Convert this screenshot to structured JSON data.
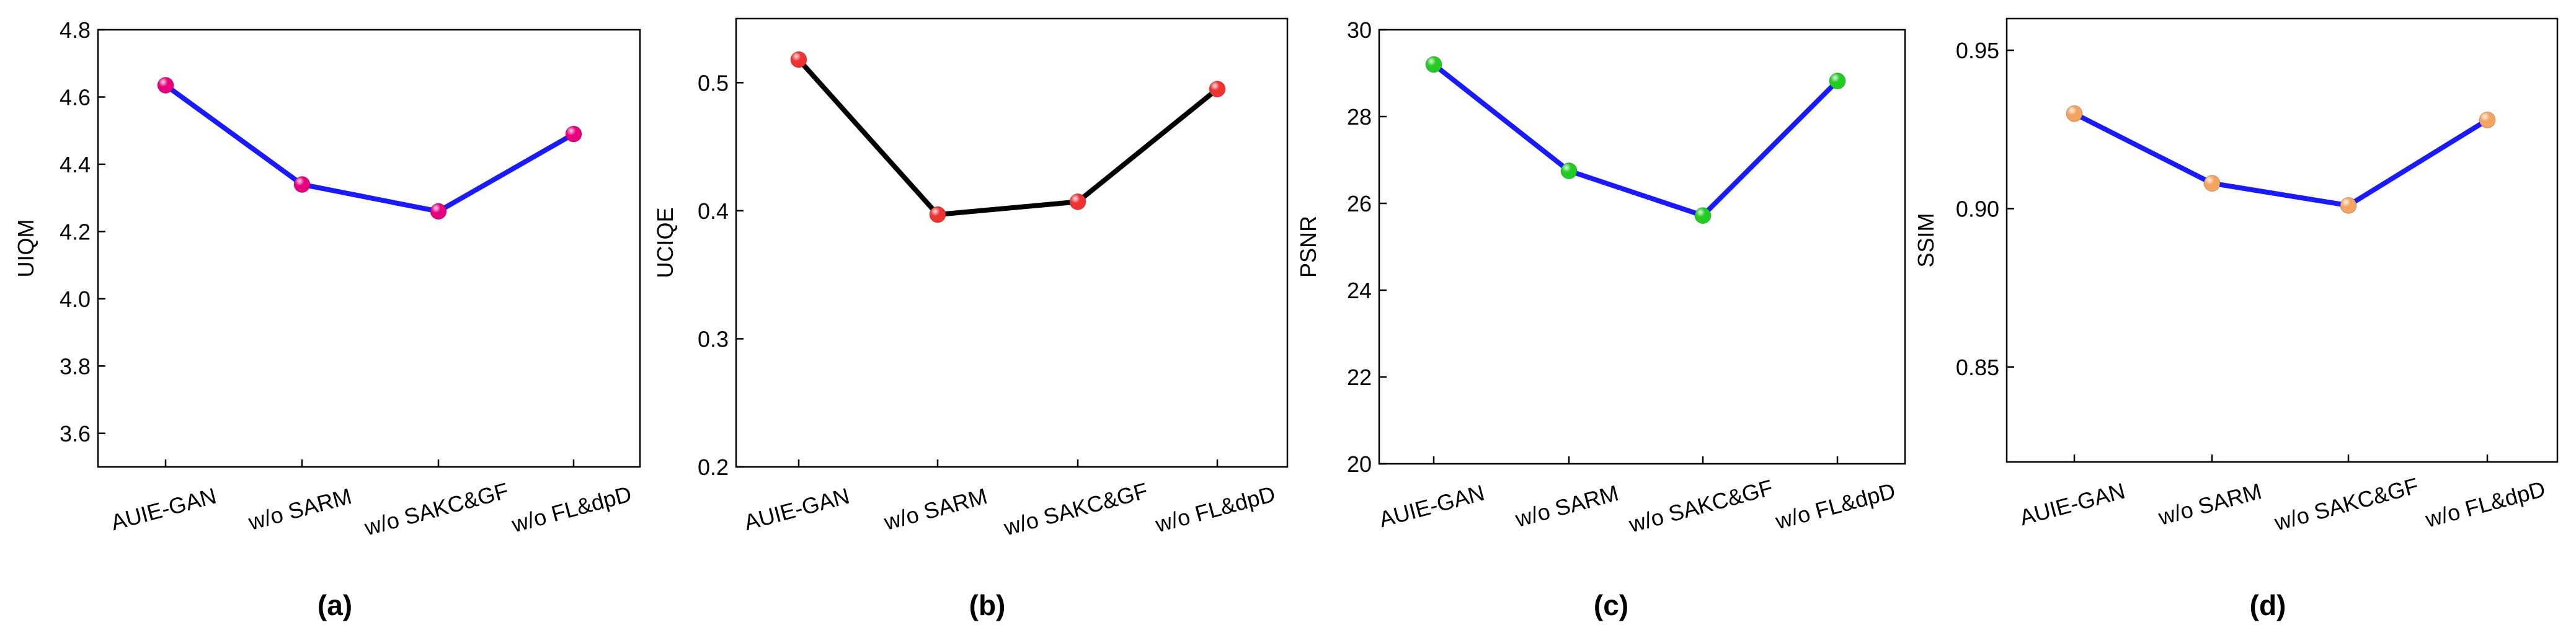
{
  "chart_data": [
    {
      "type": "line",
      "panel_label": "(a)",
      "ylabel": "UIQM",
      "categories": [
        "AUIE-GAN",
        "w/o SARM",
        "w/o SAKC&GF",
        "w/o FL&dpD"
      ],
      "values": [
        4.635,
        4.34,
        4.26,
        4.49
      ],
      "ylim": [
        3.5,
        4.8
      ],
      "yticks": [
        3.6,
        3.8,
        4.0,
        4.2,
        4.4,
        4.6,
        4.8
      ],
      "ytick_labels": [
        "3.6",
        "3.8",
        "4.0",
        "4.2",
        "4.4",
        "4.6",
        "4.8"
      ],
      "line_color": "#1a1aff",
      "marker_color": "#e6007e"
    },
    {
      "type": "line",
      "panel_label": "(b)",
      "ylabel": "UCIQE",
      "categories": [
        "AUIE-GAN",
        "w/o SARM",
        "w/o SAKC&GF",
        "w/o FL&dpD"
      ],
      "values": [
        0.518,
        0.397,
        0.407,
        0.495
      ],
      "ylim": [
        0.2,
        0.55
      ],
      "yticks": [
        0.2,
        0.3,
        0.4,
        0.5
      ],
      "ytick_labels": [
        "0.2",
        "0.3",
        "0.4",
        "0.5"
      ],
      "line_color": "#000000",
      "marker_color": "#ee3333"
    },
    {
      "type": "line",
      "panel_label": "(c)",
      "ylabel": "PSNR",
      "categories": [
        "AUIE-GAN",
        "w/o SARM",
        "w/o SAKC&GF",
        "w/o FL&dpD"
      ],
      "values": [
        29.2,
        26.75,
        25.72,
        28.82
      ],
      "ylim": [
        20,
        30
      ],
      "yticks": [
        20,
        22,
        24,
        26,
        28,
        30
      ],
      "ytick_labels": [
        "20",
        "22",
        "24",
        "26",
        "28",
        "30"
      ],
      "line_color": "#1a1aff",
      "marker_color": "#22cc22"
    },
    {
      "type": "line",
      "panel_label": "(d)",
      "ylabel": "SSIM",
      "categories": [
        "AUIE-GAN",
        "w/o SARM",
        "w/o SAKC&GF",
        "w/o FL&dpD"
      ],
      "values": [
        0.93,
        0.908,
        0.901,
        0.928
      ],
      "ylim": [
        0.82,
        0.96
      ],
      "yticks": [
        0.85,
        0.9,
        0.95
      ],
      "ytick_labels": [
        "0.85",
        "0.90",
        "0.95"
      ],
      "line_color": "#1a1aff",
      "marker_color": "#f4a460"
    }
  ]
}
